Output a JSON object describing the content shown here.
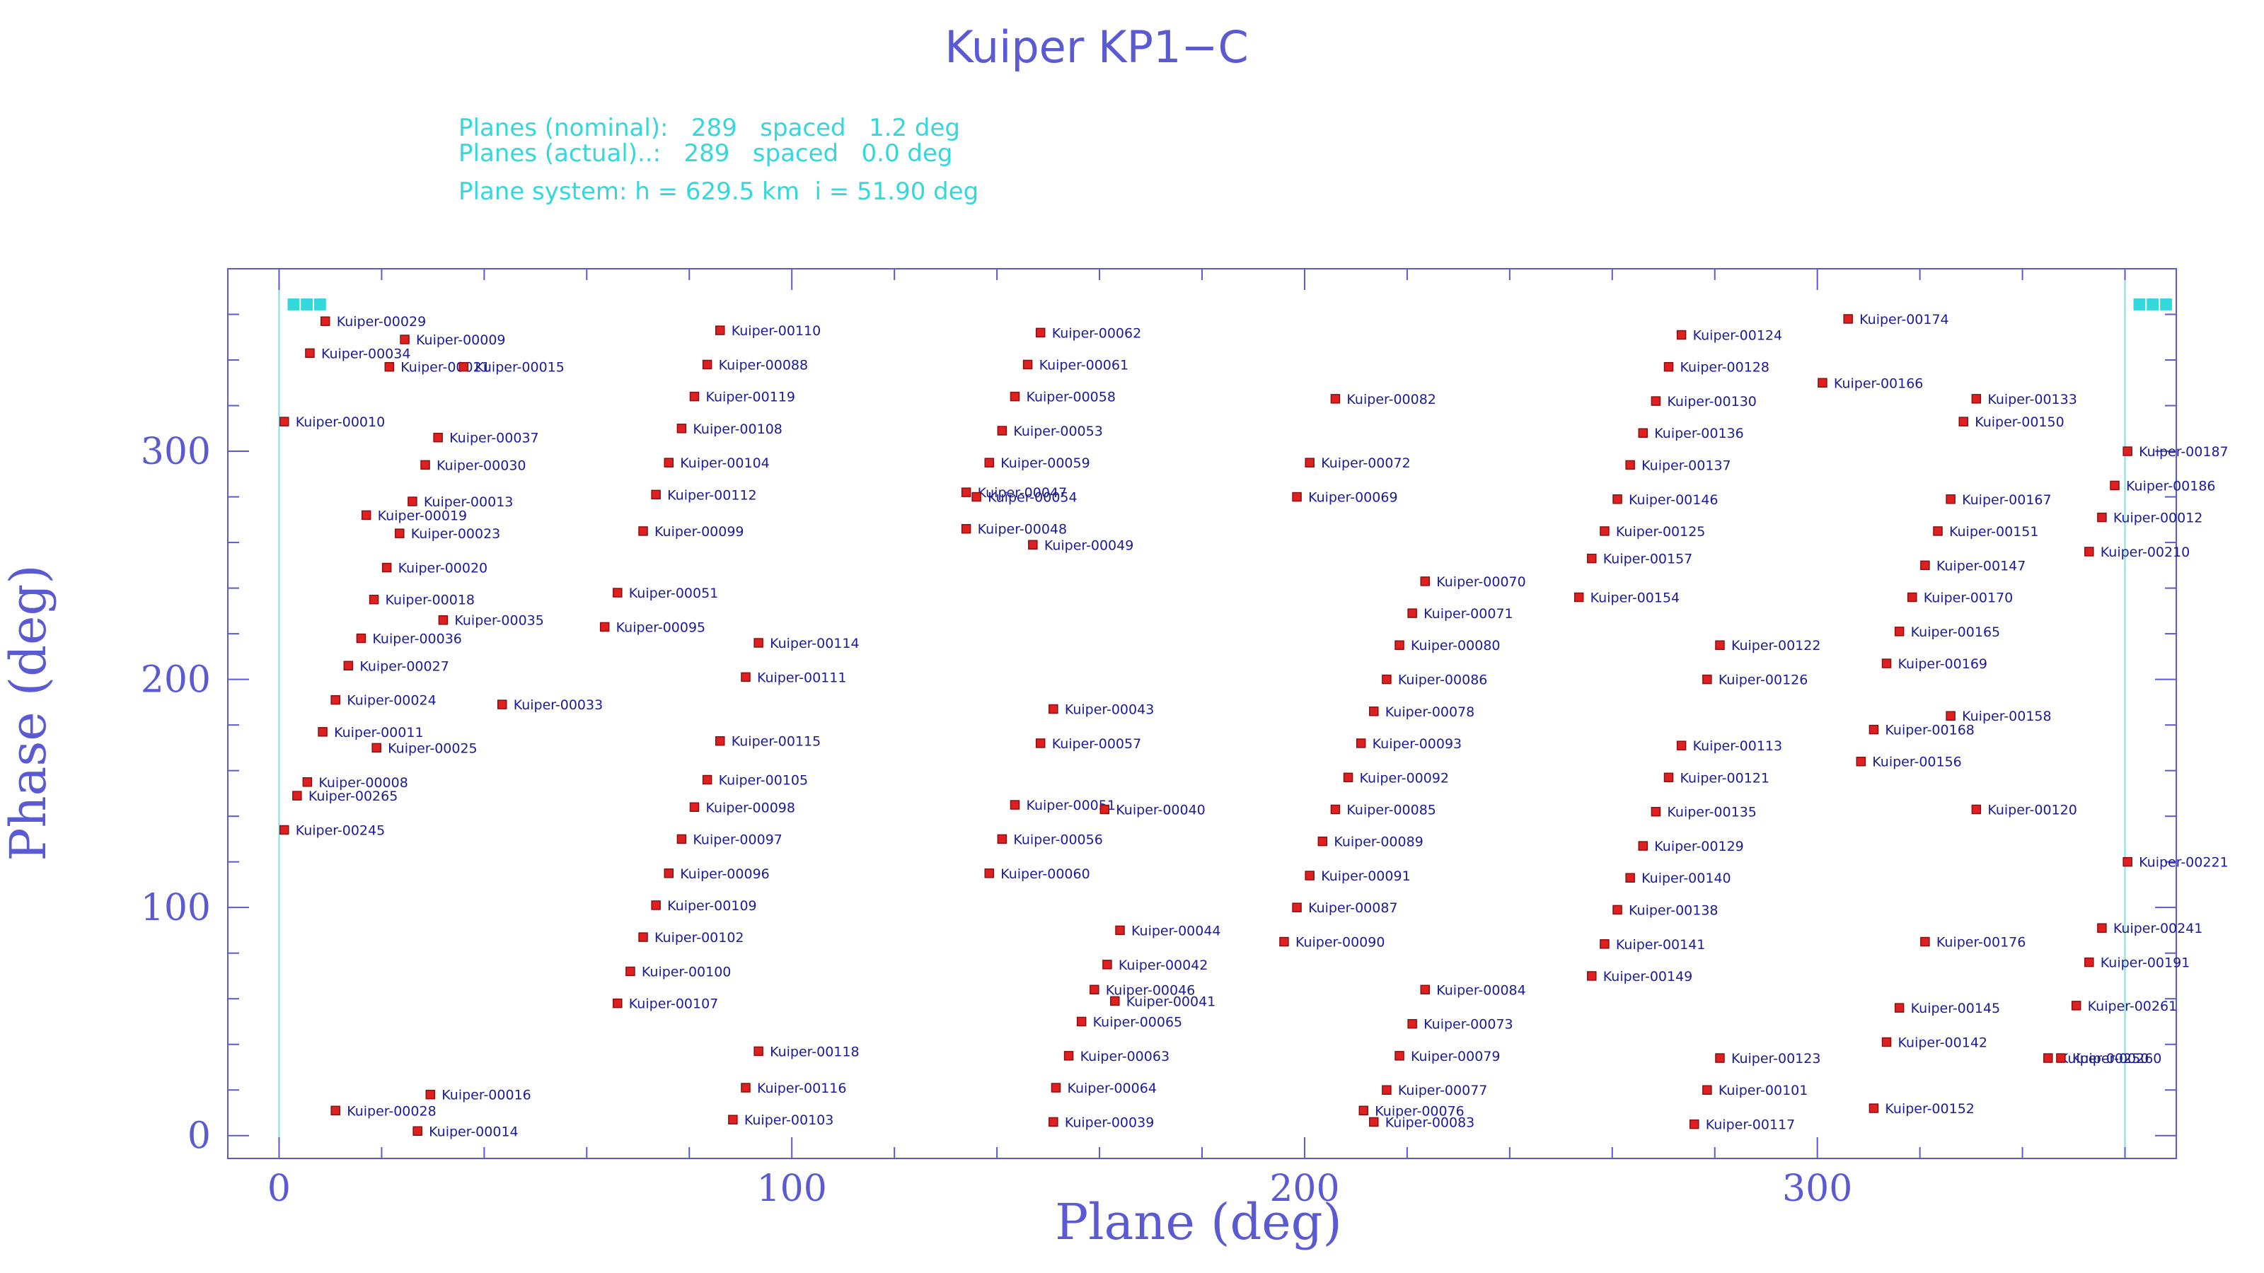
{
  "page": {
    "title": "Kuiper KP1−C",
    "info_lines": [
      "Planes (nominal):   289   spaced   1.2 deg",
      "Planes (actual)..:   289   spaced   0.0 deg",
      "Plane system: h = 629.5 km  i = 51.90 deg"
    ]
  },
  "colors": {
    "axis": "#5a5ad2",
    "label_text": "#1b1b96",
    "marker_fill": "#e02020",
    "marker_stroke": "#8a1010",
    "info_text": "#34d8dc",
    "guide_line": "#7fe0e6"
  },
  "chart_data": {
    "type": "scatter",
    "title": "Kuiper KP1−C",
    "xlabel": "Plane (deg)",
    "ylabel": "Phase (deg)",
    "xlim": [
      -10,
      370
    ],
    "ylim": [
      -10,
      380
    ],
    "xticks": [
      0,
      100,
      200,
      300
    ],
    "yticks": [
      0,
      100,
      200,
      300
    ],
    "grid": false,
    "guide_lines_x": [
      0,
      360
    ],
    "edge_marker_text": "■■■",
    "points": [
      {
        "label": "Kuiper-00029",
        "x": 9,
        "y": 357
      },
      {
        "label": "Kuiper-00009",
        "x": 24.5,
        "y": 349
      },
      {
        "label": "Kuiper-00034",
        "x": 6,
        "y": 343
      },
      {
        "label": "Kuiper-00021",
        "x": 21.5,
        "y": 337
      },
      {
        "label": "Kuiper-00015",
        "x": 36,
        "y": 337
      },
      {
        "label": "Kuiper-00010",
        "x": 1,
        "y": 313
      },
      {
        "label": "Kuiper-00037",
        "x": 31,
        "y": 306
      },
      {
        "label": "Kuiper-00030",
        "x": 28.5,
        "y": 294
      },
      {
        "label": "Kuiper-00013",
        "x": 26,
        "y": 278
      },
      {
        "label": "Kuiper-00019",
        "x": 17,
        "y": 272
      },
      {
        "label": "Kuiper-00023",
        "x": 23.5,
        "y": 264
      },
      {
        "label": "Kuiper-00020",
        "x": 21,
        "y": 249
      },
      {
        "label": "Kuiper-00018",
        "x": 18.5,
        "y": 235
      },
      {
        "label": "Kuiper-00035",
        "x": 32,
        "y": 226
      },
      {
        "label": "Kuiper-00036",
        "x": 16,
        "y": 218
      },
      {
        "label": "Kuiper-00027",
        "x": 13.5,
        "y": 206
      },
      {
        "label": "Kuiper-00024",
        "x": 11,
        "y": 191
      },
      {
        "label": "Kuiper-00033",
        "x": 43.5,
        "y": 189
      },
      {
        "label": "Kuiper-00011",
        "x": 8.5,
        "y": 177
      },
      {
        "label": "Kuiper-00025",
        "x": 19,
        "y": 170
      },
      {
        "label": "Kuiper-00008",
        "x": 5.5,
        "y": 155
      },
      {
        "label": "Kuiper-00265",
        "x": 3.5,
        "y": 149
      },
      {
        "label": "Kuiper-00245",
        "x": 1,
        "y": 134
      },
      {
        "label": "Kuiper-00016",
        "x": 29.5,
        "y": 18
      },
      {
        "label": "Kuiper-00028",
        "x": 11,
        "y": 11
      },
      {
        "label": "Kuiper-00014",
        "x": 27,
        "y": 2
      },
      {
        "label": "Kuiper-00110",
        "x": 86,
        "y": 353
      },
      {
        "label": "Kuiper-00088",
        "x": 83.5,
        "y": 338
      },
      {
        "label": "Kuiper-00119",
        "x": 81,
        "y": 324
      },
      {
        "label": "Kuiper-00108",
        "x": 78.5,
        "y": 310
      },
      {
        "label": "Kuiper-00104",
        "x": 76,
        "y": 295
      },
      {
        "label": "Kuiper-00112",
        "x": 73.5,
        "y": 281
      },
      {
        "label": "Kuiper-00099",
        "x": 71,
        "y": 265
      },
      {
        "label": "Kuiper-00051",
        "x": 66,
        "y": 238
      },
      {
        "label": "Kuiper-00095",
        "x": 63.5,
        "y": 223
      },
      {
        "label": "Kuiper-00114",
        "x": 93.5,
        "y": 216
      },
      {
        "label": "Kuiper-00111",
        "x": 91,
        "y": 201
      },
      {
        "label": "Kuiper-00115",
        "x": 86,
        "y": 173
      },
      {
        "label": "Kuiper-00105",
        "x": 83.5,
        "y": 156
      },
      {
        "label": "Kuiper-00098",
        "x": 81,
        "y": 144
      },
      {
        "label": "Kuiper-00097",
        "x": 78.5,
        "y": 130
      },
      {
        "label": "Kuiper-00096",
        "x": 76,
        "y": 115
      },
      {
        "label": "Kuiper-00109",
        "x": 73.5,
        "y": 101
      },
      {
        "label": "Kuiper-00102",
        "x": 71,
        "y": 87
      },
      {
        "label": "Kuiper-00100",
        "x": 68.5,
        "y": 72
      },
      {
        "label": "Kuiper-00107",
        "x": 66,
        "y": 58
      },
      {
        "label": "Kuiper-00118",
        "x": 93.5,
        "y": 37
      },
      {
        "label": "Kuiper-00116",
        "x": 91,
        "y": 21
      },
      {
        "label": "Kuiper-00103",
        "x": 88.5,
        "y": 7
      },
      {
        "label": "Kuiper-00062",
        "x": 148.5,
        "y": 352
      },
      {
        "label": "Kuiper-00061",
        "x": 146,
        "y": 338
      },
      {
        "label": "Kuiper-00058",
        "x": 143.5,
        "y": 324
      },
      {
        "label": "Kuiper-00053",
        "x": 141,
        "y": 309
      },
      {
        "label": "Kuiper-00059",
        "x": 138.5,
        "y": 295
      },
      {
        "label": "Kuiper-00047",
        "x": 134,
        "y": 282
      },
      {
        "label": "Kuiper-00054",
        "x": 136,
        "y": 280
      },
      {
        "label": "Kuiper-00048",
        "x": 134,
        "y": 266
      },
      {
        "label": "Kuiper-00049",
        "x": 147,
        "y": 259
      },
      {
        "label": "Kuiper-00043",
        "x": 151,
        "y": 187
      },
      {
        "label": "Kuiper-00057",
        "x": 148.5,
        "y": 172
      },
      {
        "label": "Kuiper-00051",
        "x": 143.5,
        "y": 145
      },
      {
        "label": "Kuiper-00040",
        "x": 161,
        "y": 143
      },
      {
        "label": "Kuiper-00056",
        "x": 141,
        "y": 130
      },
      {
        "label": "Kuiper-00060",
        "x": 138.5,
        "y": 115
      },
      {
        "label": "Kuiper-00044",
        "x": 164,
        "y": 90
      },
      {
        "label": "Kuiper-00042",
        "x": 161.5,
        "y": 75
      },
      {
        "label": "Kuiper-00046",
        "x": 159,
        "y": 64
      },
      {
        "label": "Kuiper-00041",
        "x": 163,
        "y": 59
      },
      {
        "label": "Kuiper-00065",
        "x": 156.5,
        "y": 50
      },
      {
        "label": "Kuiper-00063",
        "x": 154,
        "y": 35
      },
      {
        "label": "Kuiper-00064",
        "x": 151.5,
        "y": 21
      },
      {
        "label": "Kuiper-00039",
        "x": 151,
        "y": 6
      },
      {
        "label": "Kuiper-00082",
        "x": 206,
        "y": 323
      },
      {
        "label": "Kuiper-00072",
        "x": 201,
        "y": 295
      },
      {
        "label": "Kuiper-00069",
        "x": 198.5,
        "y": 280
      },
      {
        "label": "Kuiper-00070",
        "x": 223.5,
        "y": 243
      },
      {
        "label": "Kuiper-00071",
        "x": 221,
        "y": 229
      },
      {
        "label": "Kuiper-00080",
        "x": 218.5,
        "y": 215
      },
      {
        "label": "Kuiper-00086",
        "x": 216,
        "y": 200
      },
      {
        "label": "Kuiper-00078",
        "x": 213.5,
        "y": 186
      },
      {
        "label": "Kuiper-00093",
        "x": 211,
        "y": 172
      },
      {
        "label": "Kuiper-00092",
        "x": 208.5,
        "y": 157
      },
      {
        "label": "Kuiper-00085",
        "x": 206,
        "y": 143
      },
      {
        "label": "Kuiper-00089",
        "x": 203.5,
        "y": 129
      },
      {
        "label": "Kuiper-00091",
        "x": 201,
        "y": 114
      },
      {
        "label": "Kuiper-00087",
        "x": 198.5,
        "y": 100
      },
      {
        "label": "Kuiper-00090",
        "x": 196,
        "y": 85
      },
      {
        "label": "Kuiper-00084",
        "x": 223.5,
        "y": 64
      },
      {
        "label": "Kuiper-00073",
        "x": 221,
        "y": 49
      },
      {
        "label": "Kuiper-00079",
        "x": 218.5,
        "y": 35
      },
      {
        "label": "Kuiper-00077",
        "x": 216,
        "y": 20
      },
      {
        "label": "Kuiper-00076",
        "x": 211.5,
        "y": 11
      },
      {
        "label": "Kuiper-00083",
        "x": 213.5,
        "y": 6
      },
      {
        "label": "Kuiper-00124",
        "x": 273.5,
        "y": 351
      },
      {
        "label": "Kuiper-00128",
        "x": 271,
        "y": 337
      },
      {
        "label": "Kuiper-00130",
        "x": 268.5,
        "y": 322
      },
      {
        "label": "Kuiper-00136",
        "x": 266,
        "y": 308
      },
      {
        "label": "Kuiper-00137",
        "x": 263.5,
        "y": 294
      },
      {
        "label": "Kuiper-00146",
        "x": 261,
        "y": 279
      },
      {
        "label": "Kuiper-00125",
        "x": 258.5,
        "y": 265
      },
      {
        "label": "Kuiper-00157",
        "x": 256,
        "y": 253
      },
      {
        "label": "Kuiper-00154",
        "x": 253.5,
        "y": 236
      },
      {
        "label": "Kuiper-00122",
        "x": 281,
        "y": 215
      },
      {
        "label": "Kuiper-00126",
        "x": 278.5,
        "y": 200
      },
      {
        "label": "Kuiper-00113",
        "x": 273.5,
        "y": 171
      },
      {
        "label": "Kuiper-00121",
        "x": 271,
        "y": 157
      },
      {
        "label": "Kuiper-00135",
        "x": 268.5,
        "y": 142
      },
      {
        "label": "Kuiper-00129",
        "x": 266,
        "y": 127
      },
      {
        "label": "Kuiper-00140",
        "x": 263.5,
        "y": 113
      },
      {
        "label": "Kuiper-00138",
        "x": 261,
        "y": 99
      },
      {
        "label": "Kuiper-00141",
        "x": 258.5,
        "y": 84
      },
      {
        "label": "Kuiper-00149",
        "x": 256,
        "y": 70
      },
      {
        "label": "Kuiper-00123",
        "x": 281,
        "y": 34
      },
      {
        "label": "Kuiper-00101",
        "x": 278.5,
        "y": 20
      },
      {
        "label": "Kuiper-00117",
        "x": 276,
        "y": 5
      },
      {
        "label": "Kuiper-00174",
        "x": 306,
        "y": 358
      },
      {
        "label": "Kuiper-00166",
        "x": 301,
        "y": 330
      },
      {
        "label": "Kuiper-00133",
        "x": 331,
        "y": 323
      },
      {
        "label": "Kuiper-00150",
        "x": 328.5,
        "y": 313
      },
      {
        "label": "Kuiper-00167",
        "x": 326,
        "y": 279
      },
      {
        "label": "Kuiper-00151",
        "x": 323.5,
        "y": 265
      },
      {
        "label": "Kuiper-00147",
        "x": 321,
        "y": 250
      },
      {
        "label": "Kuiper-00170",
        "x": 318.5,
        "y": 236
      },
      {
        "label": "Kuiper-00165",
        "x": 316,
        "y": 221
      },
      {
        "label": "Kuiper-00169",
        "x": 313.5,
        "y": 207
      },
      {
        "label": "Kuiper-00158",
        "x": 326,
        "y": 184
      },
      {
        "label": "Kuiper-00168",
        "x": 311,
        "y": 178
      },
      {
        "label": "Kuiper-00156",
        "x": 308.5,
        "y": 164
      },
      {
        "label": "Kuiper-00120",
        "x": 331,
        "y": 143
      },
      {
        "label": "Kuiper-00176",
        "x": 321,
        "y": 85
      },
      {
        "label": "Kuiper-00145",
        "x": 316,
        "y": 56
      },
      {
        "label": "Kuiper-00142",
        "x": 313.5,
        "y": 41
      },
      {
        "label": "Kuiper-00152",
        "x": 311,
        "y": 12
      },
      {
        "label": "Kuiper-00187",
        "x": 360.5,
        "y": 300
      },
      {
        "label": "Kuiper-00186",
        "x": 358,
        "y": 285
      },
      {
        "label": "Kuiper-00012",
        "x": 355.5,
        "y": 271
      },
      {
        "label": "Kuiper-00210",
        "x": 353,
        "y": 256
      },
      {
        "label": "Kuiper-00221",
        "x": 360.5,
        "y": 120
      },
      {
        "label": "Kuiper-00241",
        "x": 355.5,
        "y": 91
      },
      {
        "label": "Kuiper-00191",
        "x": 353,
        "y": 76
      },
      {
        "label": "Kuiper-00261",
        "x": 350.5,
        "y": 57
      },
      {
        "label": "Kuiper-00250",
        "x": 345,
        "y": 34
      },
      {
        "label": "Kuiper-00260",
        "x": 347.5,
        "y": 34
      }
    ]
  }
}
